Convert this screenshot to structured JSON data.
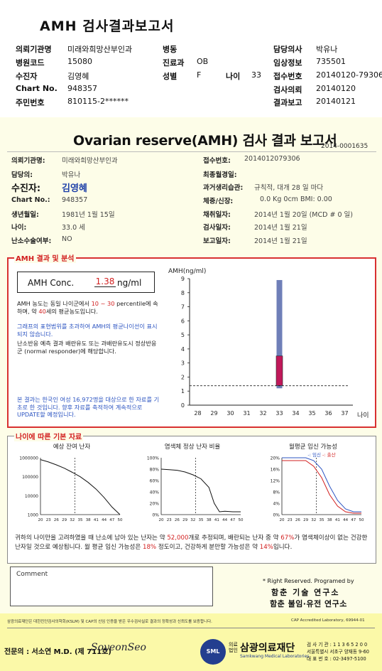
{
  "header": {
    "title": "AMH 검사결과보고서",
    "left": [
      {
        "label": "의뢰기관명",
        "value": "미래와희망산부인과"
      },
      {
        "label": "병원코드",
        "value": "15080"
      },
      {
        "label": "수진자",
        "value": "김영혜"
      },
      {
        "label": "Chart No.",
        "value": "948357"
      },
      {
        "label": "주민번호",
        "value": "810115-2******"
      }
    ],
    "mid": [
      {
        "label": "병동",
        "value": ""
      },
      {
        "label": "진료과",
        "value": "OB"
      },
      {
        "label": "성별",
        "value": "F"
      }
    ],
    "age_label": "나이",
    "age_value": "33",
    "right": [
      {
        "label": "담당의사",
        "value": "박유나"
      },
      {
        "label": "임상정보",
        "value": "735501"
      },
      {
        "label": "접수번호",
        "value": "20140120-79306"
      },
      {
        "label": "검사의뢰",
        "value": "20140120"
      },
      {
        "label": "결과보고",
        "value": "20140121"
      }
    ]
  },
  "report": {
    "title_en": "Ovarian reserve(AMH)",
    "title_ko": " 검사 결과 보고서",
    "doc_no": "2014-0001635",
    "left_info": [
      {
        "label": "의뢰기관명:",
        "value": "미래와희망산부인과"
      },
      {
        "label": "담당의:",
        "value": "박유나"
      }
    ],
    "patient_label": "수진자:",
    "patient_value": "김영혜",
    "left_info2": [
      {
        "label": "Chart No.:",
        "value": "948357"
      },
      {
        "label": "생년월일:",
        "value": "1981년 1월 15일"
      },
      {
        "label": "나이:",
        "value": "33.0 세"
      },
      {
        "label": "난소수술여부:",
        "value": "NO"
      }
    ],
    "right_info": [
      {
        "label": "접수번호:",
        "value": "2014012079306"
      },
      {
        "label": "최종월경일:",
        "value": ""
      },
      {
        "label": "과거생리습관:",
        "value": "규칙적, 대개   28 일 마다"
      },
      {
        "label": "체중/신장:",
        "value": "0.0 Kg         0cm    BMI:   0.00"
      },
      {
        "label": "채취일자:",
        "value": "2014년 1월 20일   (MCD # 0 일)"
      },
      {
        "label": "검사일자:",
        "value": "2014년 1월 21일"
      },
      {
        "label": "보고일자:",
        "value": "2014년 1월 21일"
      }
    ]
  },
  "amh": {
    "section_title": "AMH 결과 및 분석",
    "conc_label": "AMH Conc.",
    "conc_value": "1.38",
    "conc_unit": "ng/ml",
    "p1_a": "AMH 농도는 동일 나이군에서",
    "p1_range": "10 ~ 30",
    "p1_b": "percentile에 속하며, 약",
    "p1_age": "40",
    "p1_c": "세의 평균농도입니다.",
    "p2": "그래프의 표현범위를 초과하여 AMH의 평균나이선이 표시되지 않습니다.",
    "p3": "난소반응 예측 결과 배란유도 또는 과배란유도시 정상반응군 (normal responder)에 해당합니다.",
    "p4": "본 결과는 한국인 여성 16,972명을 대상으로 한 자료를 기초로 한 것입니다. 향후 자료를 축적하여 계속적으로 UPDATE할 예정입니다."
  },
  "chart_data": [
    {
      "type": "range-bar",
      "ylabel": "AMH(ng/ml)",
      "xlabel": "나이",
      "x_ticks": [
        "28",
        "29",
        "30",
        "31",
        "32",
        "33",
        "34",
        "35",
        "36",
        "37"
      ],
      "y_ticks": [
        "0",
        "1",
        "2",
        "3",
        "4",
        "5",
        "6",
        "7",
        "8",
        "9"
      ],
      "ylim": [
        0,
        9
      ],
      "age": 33,
      "bar_low": 1.2,
      "bar_high": 8.9,
      "box_low": 1.4,
      "box_high": 3.5,
      "patient_value": 1.38,
      "bar_color": "#6f7fb8",
      "box_color": "#c0185a",
      "grid": false
    },
    {
      "type": "line",
      "title": "예상 잔여 난자",
      "y_ticks": [
        "1000000",
        "100000",
        "10000",
        "1000"
      ],
      "x_ticks": [
        "20",
        "23",
        "26",
        "29",
        "32",
        "35",
        "38",
        "41",
        "44",
        "47",
        "50"
      ],
      "log_scale": true,
      "marker_age": 33,
      "x": [
        20,
        23,
        26,
        29,
        32,
        35,
        38,
        41,
        44,
        47,
        50
      ],
      "y": [
        800000,
        600000,
        420000,
        280000,
        170000,
        100000,
        50000,
        22000,
        8000,
        2500,
        1000
      ]
    },
    {
      "type": "line",
      "title": "염색체 정상 난자 비율",
      "y_ticks": [
        "100%",
        "80%",
        "60%",
        "40%",
        "20%",
        "0%"
      ],
      "x_ticks": [
        "20",
        "23",
        "26",
        "29",
        "32",
        "35",
        "38",
        "41",
        "44",
        "47",
        "50"
      ],
      "marker_age": 33,
      "x": [
        20,
        23,
        26,
        29,
        32,
        35,
        38,
        40,
        42,
        44,
        47,
        50
      ],
      "y": [
        80,
        79,
        78,
        75,
        70,
        63,
        48,
        20,
        5,
        6,
        5,
        5
      ]
    },
    {
      "type": "line",
      "title": "월평균 임신 가능성",
      "legend": [
        "임신",
        "출산"
      ],
      "y_ticks": [
        "20%",
        "16%",
        "12%",
        "8%",
        "4%",
        "0%"
      ],
      "x_ticks": [
        "20",
        "23",
        "26",
        "29",
        "32",
        "35",
        "38",
        "41",
        "44",
        "47",
        "50"
      ],
      "marker_age": 33,
      "series": [
        {
          "name": "임신",
          "x": [
            20,
            23,
            26,
            29,
            32,
            35,
            38,
            41,
            44,
            47,
            50
          ],
          "y": [
            20,
            20,
            20,
            20,
            19,
            16,
            10,
            5,
            2,
            1,
            1
          ]
        },
        {
          "name": "출산",
          "x": [
            20,
            23,
            26,
            29,
            32,
            35,
            38,
            41,
            44,
            47,
            50
          ],
          "y": [
            19,
            19,
            19,
            19,
            17,
            13,
            7,
            3,
            1,
            0.5,
            0.5
          ]
        }
      ]
    }
  ],
  "age_section": {
    "title": "나이에 따른 기본 자료",
    "s1": "귀하의 나이만을 고려하였을 때 난소에 남아 있는 난자는 약",
    "eggs": "52,000",
    "s2": "개로 추정되며, 배란되는 난자 중",
    "s3": "약",
    "pct_normal": "67%",
    "s4": "가 염색체이상이 없는 건강한 난자일 것으로 예상됩니다. 월 평균 임신 가능성은",
    "pct_preg": "18%",
    "s5": "정도이고,",
    "s6": "건강하게 분만할 가능성은 약",
    "pct_birth": "14%",
    "s7": "입니다."
  },
  "comment_label": "Comment",
  "rights": "* Right Reserved. Programed by",
  "lab_a": "함춘 기술 연구소",
  "lab_b": "함춘 불임·유전 연구소",
  "footer": {
    "note": "삼광의료재단은 대한진단검사의학회(KSLM) 및 CAP의 신임 인증을 받은 우수검사실로 결과의 정확성과 신뢰도를 보증합니다.",
    "cap": "CAP  Accredited  Laboratory,  69944-01",
    "doctor": "전문의 : 서소연 M.D. (제 711호)",
    "signature": "SoyeonSeo",
    "logo": "SML",
    "org_prefix": "의료 법인",
    "org": "삼광의료재단",
    "org_en": "Samkwang Medical Laboratories",
    "contact": [
      "검 사 기 관 : 1 1 3 6 5 2 0 0",
      "서울특별시 서초구 양재동 9-60",
      "대 표 번 호 : 02-3497-5100"
    ]
  }
}
